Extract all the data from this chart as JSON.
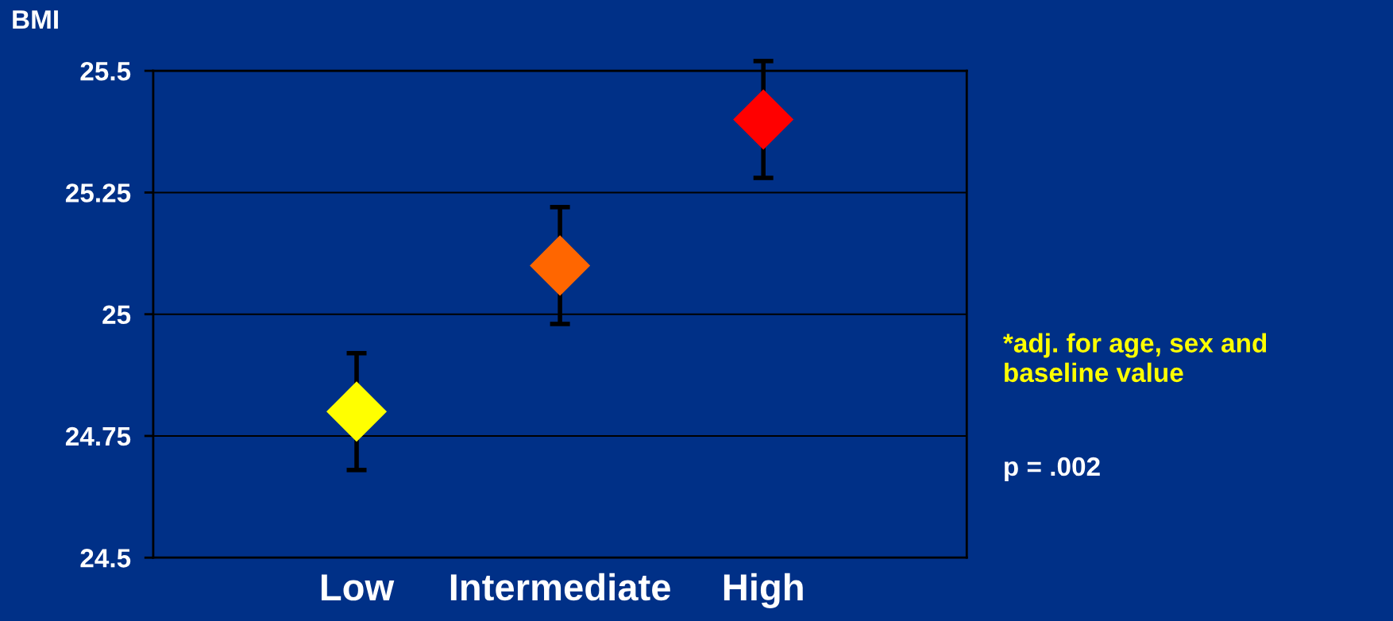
{
  "chart_data": {
    "type": "scatter",
    "ylabel": "BMI",
    "categories": [
      "Low",
      "Intermediate",
      "High"
    ],
    "values": [
      24.8,
      25.1,
      25.4
    ],
    "errors": [
      0.12,
      0.12,
      0.12
    ],
    "colors": [
      "#ffff00",
      "#ff6600",
      "#ff0000"
    ],
    "ylim": [
      24.5,
      25.5
    ],
    "yticks": [
      24.5,
      24.75,
      25,
      25.25,
      25.5
    ],
    "grid": "y",
    "marker": "diamond",
    "annotations": [
      "*adj. for age, sex and\nbaseline value",
      "p = .002"
    ]
  }
}
